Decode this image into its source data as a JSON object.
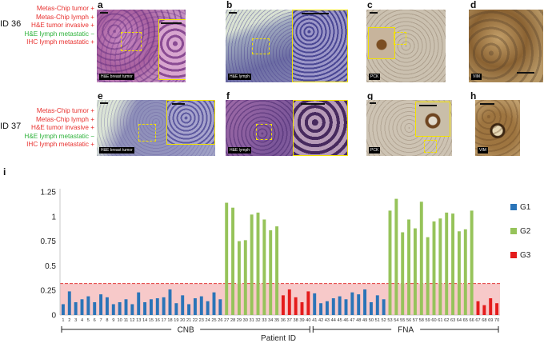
{
  "figure": {
    "rows": [
      {
        "id_label": "ID 36",
        "conditions": [
          {
            "text": "Metas-Chip tumor +",
            "color": "#e8302e"
          },
          {
            "text": "Metas-Chip lymph +",
            "color": "#e8302e"
          },
          {
            "text": "H&E tumor invasive +",
            "color": "#e8302e"
          },
          {
            "text": "H&E lymph metastatic −",
            "color": "#2db23a"
          },
          {
            "text": "IHC lymph metastatic +",
            "color": "#e8302e"
          }
        ],
        "panels": [
          {
            "letter": "a",
            "tag": "H&E breast tumor"
          },
          {
            "letter": "b",
            "tag": "H&E lymph"
          },
          {
            "letter": "c",
            "tag": "PCK"
          },
          {
            "letter": "d",
            "tag": "VIM"
          }
        ]
      },
      {
        "id_label": "ID 37",
        "conditions": [
          {
            "text": "Metas-Chip tumor +",
            "color": "#e8302e"
          },
          {
            "text": "Metas-Chip lymph +",
            "color": "#e8302e"
          },
          {
            "text": "H&E tumor invasive +",
            "color": "#e8302e"
          },
          {
            "text": "H&E lymph metastatic −",
            "color": "#2db23a"
          },
          {
            "text": "IHC lymph metastatic +",
            "color": "#e8302e"
          }
        ],
        "panels": [
          {
            "letter": "e",
            "tag": "H&E breast tumor"
          },
          {
            "letter": "f",
            "tag": "H&E lymph"
          },
          {
            "letter": "g",
            "tag": "PCK"
          },
          {
            "letter": "h",
            "tag": "VIM"
          }
        ]
      }
    ],
    "chart_label": "i"
  },
  "colors": {
    "he_pink": "#b76fae",
    "he_blue": "#7e76ad",
    "ihc_bg": "#c9bfae",
    "ihc_brown": "#8a5a2a",
    "g1": "#2a74b8",
    "g2": "#96c35a",
    "g3": "#e41c1c",
    "threshold_fill": "#f7c9c9",
    "threshold_line": "#e23b3b"
  },
  "chart_data": {
    "type": "bar",
    "title": "",
    "xlabel": "Patient ID",
    "ylabel": "",
    "ylim": [
      0,
      1.25
    ],
    "yticks": [
      "0",
      "0.25",
      "0.5",
      "0.75",
      "1",
      "1.25"
    ],
    "ytick_values": [
      0,
      0.25,
      0.5,
      0.75,
      1,
      1.25
    ],
    "threshold": 0.32,
    "categories": [
      "1",
      "2",
      "3",
      "4",
      "5",
      "6",
      "7",
      "8",
      "9",
      "10",
      "11",
      "12",
      "13",
      "14",
      "15",
      "16",
      "17",
      "18",
      "19",
      "20",
      "21",
      "22",
      "23",
      "24",
      "25",
      "26",
      "27",
      "28",
      "29",
      "30",
      "31",
      "32",
      "33",
      "34",
      "35",
      "36",
      "37",
      "38",
      "39",
      "40",
      "41",
      "42",
      "43",
      "44",
      "45",
      "46",
      "47",
      "48",
      "49",
      "50",
      "51",
      "52",
      "53",
      "54",
      "55",
      "56",
      "57",
      "58",
      "59",
      "60",
      "61",
      "62",
      "63",
      "64",
      "65",
      "66",
      "67",
      "68",
      "69",
      "70"
    ],
    "values": [
      0.11,
      0.24,
      0.13,
      0.16,
      0.19,
      0.13,
      0.21,
      0.18,
      0.11,
      0.13,
      0.16,
      0.11,
      0.23,
      0.13,
      0.16,
      0.17,
      0.18,
      0.26,
      0.12,
      0.2,
      0.11,
      0.17,
      0.19,
      0.14,
      0.23,
      0.16,
      1.14,
      1.09,
      0.75,
      0.76,
      1.02,
      1.04,
      0.97,
      0.86,
      0.9,
      0.2,
      0.26,
      0.18,
      0.13,
      0.24,
      0.22,
      0.12,
      0.14,
      0.17,
      0.19,
      0.16,
      0.23,
      0.21,
      0.26,
      0.13,
      0.2,
      0.16,
      1.06,
      1.18,
      0.84,
      0.97,
      0.88,
      1.15,
      0.79,
      0.95,
      0.98,
      1.04,
      1.03,
      0.85,
      0.87,
      1.06,
      0.14,
      0.1,
      0.17,
      0.12
    ],
    "groups": [
      "G1",
      "G1",
      "G1",
      "G1",
      "G1",
      "G1",
      "G1",
      "G1",
      "G1",
      "G1",
      "G1",
      "G1",
      "G1",
      "G1",
      "G1",
      "G1",
      "G1",
      "G1",
      "G1",
      "G1",
      "G1",
      "G1",
      "G1",
      "G1",
      "G1",
      "G1",
      "G2",
      "G2",
      "G2",
      "G2",
      "G2",
      "G2",
      "G2",
      "G2",
      "G2",
      "G3",
      "G3",
      "G3",
      "G3",
      "G3",
      "G1",
      "G1",
      "G1",
      "G1",
      "G1",
      "G1",
      "G1",
      "G1",
      "G1",
      "G1",
      "G1",
      "G1",
      "G2",
      "G2",
      "G2",
      "G2",
      "G2",
      "G2",
      "G2",
      "G2",
      "G2",
      "G2",
      "G2",
      "G2",
      "G2",
      "G2",
      "G3",
      "G3",
      "G3",
      "G3"
    ],
    "legend": [
      {
        "name": "G1",
        "color": "#2a74b8"
      },
      {
        "name": "G2",
        "color": "#96c35a"
      },
      {
        "name": "G3",
        "color": "#e41c1c"
      }
    ],
    "legend_position": "top-right",
    "brackets": [
      {
        "label": "CNB",
        "from": 1,
        "to": 40
      },
      {
        "label": "FNA",
        "from": 41,
        "to": 70
      }
    ]
  }
}
